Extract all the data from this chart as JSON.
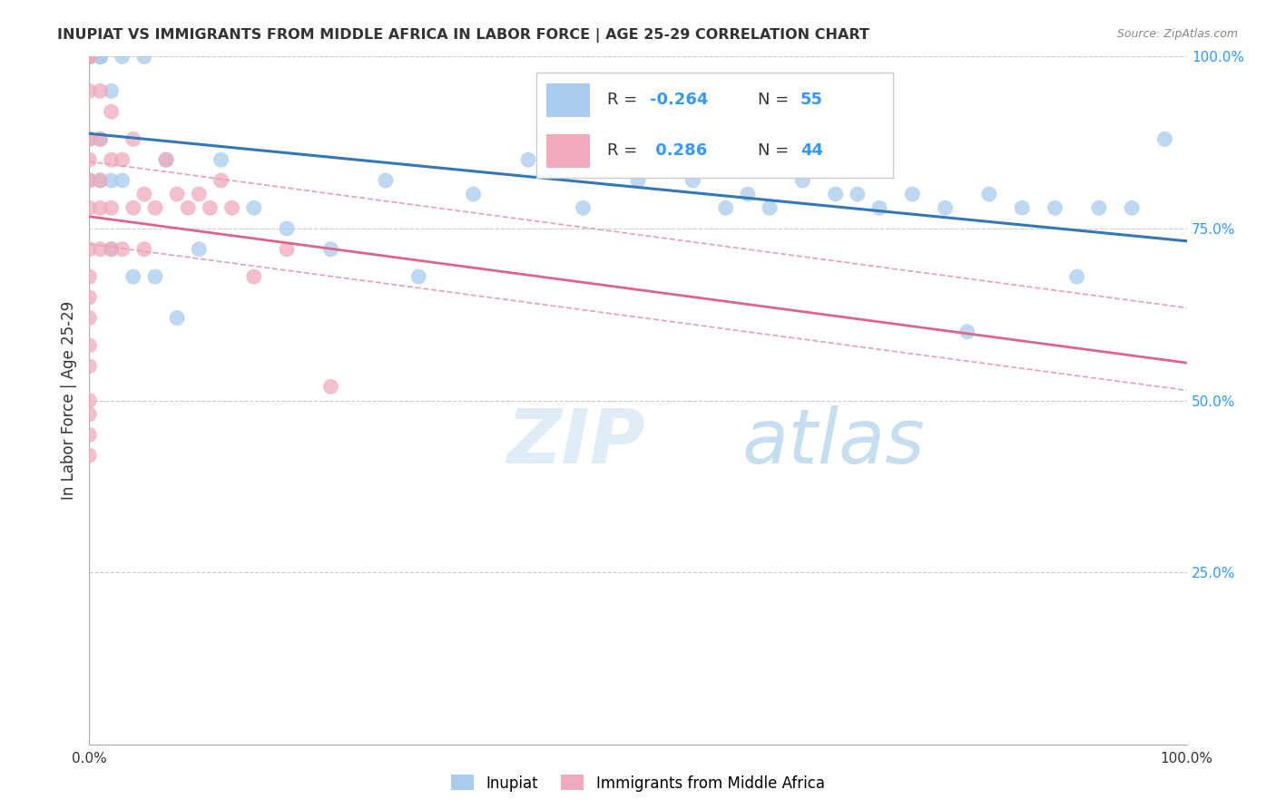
{
  "title": "INUPIAT VS IMMIGRANTS FROM MIDDLE AFRICA IN LABOR FORCE | AGE 25-29 CORRELATION CHART",
  "source": "Source: ZipAtlas.com",
  "ylabel": "In Labor Force | Age 25-29",
  "xlim": [
    0.0,
    1.0
  ],
  "ylim": [
    0.0,
    1.0
  ],
  "legend_r1": "R = -0.264",
  "legend_n1": "N = 55",
  "legend_r2": "R =  0.286",
  "legend_n2": "N = 44",
  "watermark_zip": "ZIP",
  "watermark_atlas": "atlas",
  "blue_color": "#aaccee",
  "pink_color": "#f0aabb",
  "blue_line_color": "#3377bb",
  "pink_line_color": "#dd6688",
  "pink_dash_color": "#e8a0b8",
  "text_color": "#333333",
  "grid_color": "#cccccc",
  "right_axis_color": "#3399ff",
  "inupiat_x": [
    0.0,
    0.0,
    0.0,
    0.0,
    0.0,
    0.0,
    0.0,
    0.0,
    0.0,
    0.0,
    0.01,
    0.01,
    0.01,
    0.01,
    0.01,
    0.01,
    0.02,
    0.02,
    0.02,
    0.03,
    0.03,
    0.04,
    0.05,
    0.06,
    0.07,
    0.08,
    0.1,
    0.12,
    0.15,
    0.18,
    0.22,
    0.27,
    0.3,
    0.35,
    0.4,
    0.45,
    0.5,
    0.55,
    0.58,
    0.6,
    0.62,
    0.65,
    0.68,
    0.7,
    0.72,
    0.75,
    0.78,
    0.8,
    0.82,
    0.85,
    0.88,
    0.9,
    0.92,
    0.95,
    0.98
  ],
  "inupiat_y": [
    1.0,
    1.0,
    1.0,
    1.0,
    1.0,
    1.0,
    1.0,
    1.0,
    0.88,
    0.82,
    1.0,
    1.0,
    1.0,
    1.0,
    0.88,
    0.82,
    0.95,
    0.82,
    0.72,
    1.0,
    0.82,
    0.68,
    1.0,
    0.68,
    0.85,
    0.62,
    0.72,
    0.85,
    0.78,
    0.75,
    0.72,
    0.82,
    0.68,
    0.8,
    0.85,
    0.78,
    0.82,
    0.82,
    0.78,
    0.8,
    0.78,
    0.82,
    0.8,
    0.8,
    0.78,
    0.8,
    0.78,
    0.6,
    0.8,
    0.78,
    0.78,
    0.68,
    0.78,
    0.78,
    0.88
  ],
  "pink_x": [
    0.0,
    0.0,
    0.0,
    0.0,
    0.0,
    0.0,
    0.0,
    0.0,
    0.0,
    0.0,
    0.0,
    0.0,
    0.0,
    0.0,
    0.0,
    0.0,
    0.0,
    0.0,
    0.01,
    0.01,
    0.01,
    0.01,
    0.01,
    0.02,
    0.02,
    0.02,
    0.02,
    0.03,
    0.03,
    0.04,
    0.04,
    0.05,
    0.05,
    0.06,
    0.07,
    0.08,
    0.09,
    0.1,
    0.11,
    0.12,
    0.13,
    0.15,
    0.18,
    0.22
  ],
  "pink_y": [
    1.0,
    1.0,
    1.0,
    0.95,
    0.88,
    0.85,
    0.82,
    0.78,
    0.72,
    0.68,
    0.65,
    0.62,
    0.58,
    0.55,
    0.5,
    0.48,
    0.45,
    0.42,
    0.95,
    0.88,
    0.82,
    0.78,
    0.72,
    0.92,
    0.85,
    0.78,
    0.72,
    0.85,
    0.72,
    0.88,
    0.78,
    0.8,
    0.72,
    0.78,
    0.85,
    0.8,
    0.78,
    0.8,
    0.78,
    0.82,
    0.78,
    0.68,
    0.72,
    0.52
  ]
}
